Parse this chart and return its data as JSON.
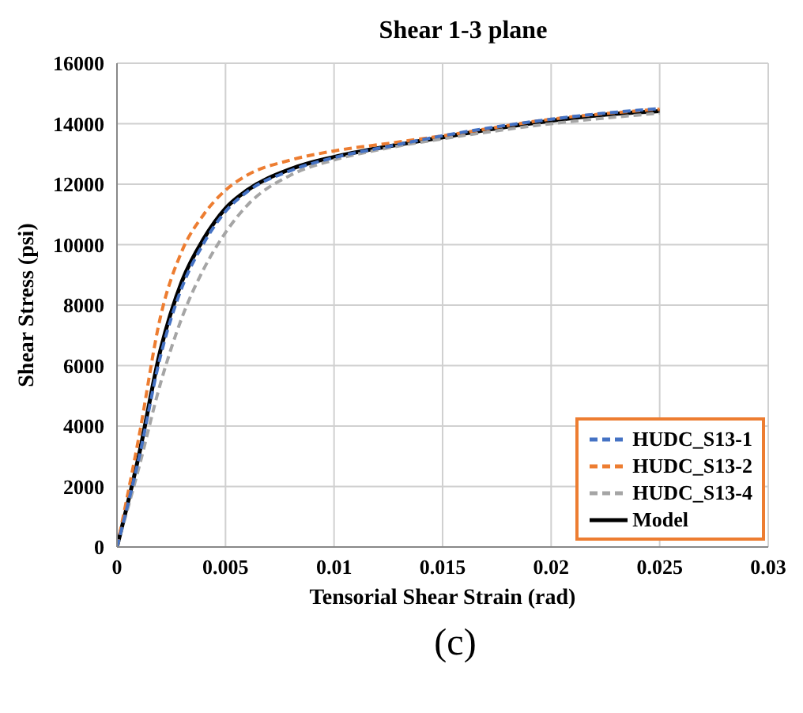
{
  "chart_data": {
    "type": "line",
    "title": "Shear 1-3 plane",
    "xlabel": "Tensorial Shear Strain (rad)",
    "ylabel": "Shear Stress (psi)",
    "annotations": [
      "(c)"
    ],
    "xlim": [
      0,
      0.03
    ],
    "xticks": [
      0,
      0.005,
      0.01,
      0.015,
      0.02,
      0.025,
      0.03
    ],
    "ylim": [
      0,
      16000
    ],
    "yticks": [
      0,
      2000,
      4000,
      6000,
      8000,
      10000,
      12000,
      14000,
      16000
    ],
    "grid": true,
    "legend": "bottom right",
    "marker": "none",
    "series": [
      {
        "name": "HUDC_S13-1",
        "color": "#4472c4",
        "line_style": "dashed",
        "x": [
          0,
          0.001,
          0.002,
          0.003,
          0.004,
          0.005,
          0.006,
          0.008,
          0.01,
          0.0125,
          0.015,
          0.0175,
          0.02,
          0.0225,
          0.025
        ],
        "values": [
          0,
          2900,
          6300,
          8600,
          10050,
          11100,
          11750,
          12450,
          12880,
          13250,
          13600,
          13900,
          14150,
          14350,
          14500
        ]
      },
      {
        "name": "HUDC_S13-2",
        "color": "#ed7d31",
        "line_style": "dashed",
        "x": [
          0,
          0.001,
          0.002,
          0.003,
          0.004,
          0.005,
          0.006,
          0.008,
          0.01,
          0.0125,
          0.015,
          0.02,
          0.025
        ],
        "values": [
          0,
          3600,
          7600,
          9800,
          11000,
          11800,
          12300,
          12800,
          13100,
          13350,
          13600,
          14150,
          14480
        ]
      },
      {
        "name": "HUDC_S13-4",
        "color": "#a5a5a5",
        "line_style": "dashed",
        "x": [
          0,
          0.001,
          0.002,
          0.003,
          0.004,
          0.005,
          0.006,
          0.008,
          0.01,
          0.0125,
          0.015,
          0.02,
          0.025
        ],
        "values": [
          0,
          2600,
          5400,
          7600,
          9200,
          10400,
          11300,
          12300,
          12800,
          13200,
          13500,
          14000,
          14350
        ]
      },
      {
        "name": "Model",
        "color": "#000000",
        "line_style": "solid",
        "x": [
          0,
          0.001,
          0.002,
          0.003,
          0.004,
          0.005,
          0.006,
          0.008,
          0.01,
          0.0125,
          0.015,
          0.0175,
          0.02,
          0.0225,
          0.025
        ],
        "values": [
          0,
          3000,
          6500,
          8800,
          10200,
          11200,
          11800,
          12500,
          12900,
          13250,
          13550,
          13850,
          14100,
          14300,
          14420
        ]
      }
    ]
  }
}
